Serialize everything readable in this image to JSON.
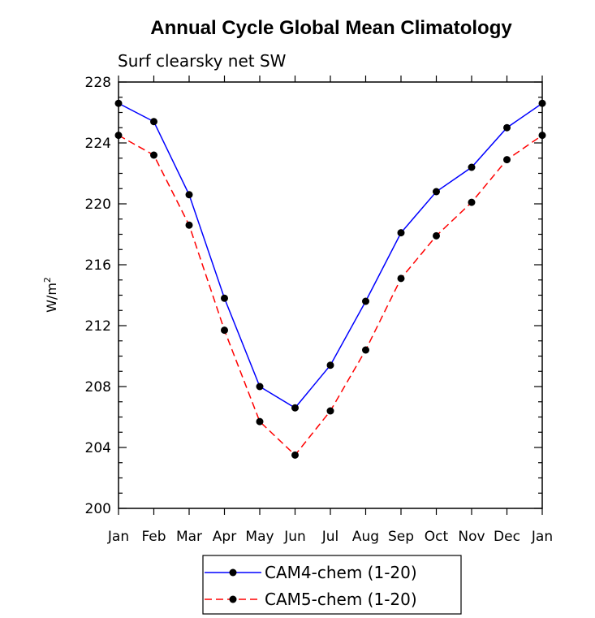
{
  "chart_data": {
    "type": "line",
    "title": "Annual Cycle Global Mean Climatology",
    "subtitle": "Surf clearsky net SW",
    "xlabel": "",
    "ylabel": "W/m",
    "ylabel_superscript": "2",
    "categories": [
      "Jan",
      "Feb",
      "Mar",
      "Apr",
      "May",
      "Jun",
      "Jul",
      "Aug",
      "Sep",
      "Oct",
      "Nov",
      "Dec",
      "Jan"
    ],
    "ylim": [
      200,
      228
    ],
    "yticks": [
      "200",
      "204",
      "208",
      "212",
      "216",
      "220",
      "224",
      "228"
    ],
    "grid": false,
    "legend_placement": "bottom-center",
    "series": [
      {
        "name": "CAM4-chem (1-20)",
        "color": "#0000ff",
        "dash": "solid",
        "values": [
          226.6,
          225.4,
          220.6,
          213.8,
          208.0,
          206.6,
          209.4,
          213.6,
          218.1,
          220.8,
          222.4,
          225.0,
          226.6
        ]
      },
      {
        "name": "CAM5-chem (1-20)",
        "color": "#ff0000",
        "dash": "dashed",
        "values": [
          224.5,
          223.2,
          218.6,
          211.7,
          205.7,
          203.5,
          206.4,
          210.4,
          215.1,
          217.9,
          220.1,
          222.9,
          224.5
        ]
      }
    ]
  }
}
